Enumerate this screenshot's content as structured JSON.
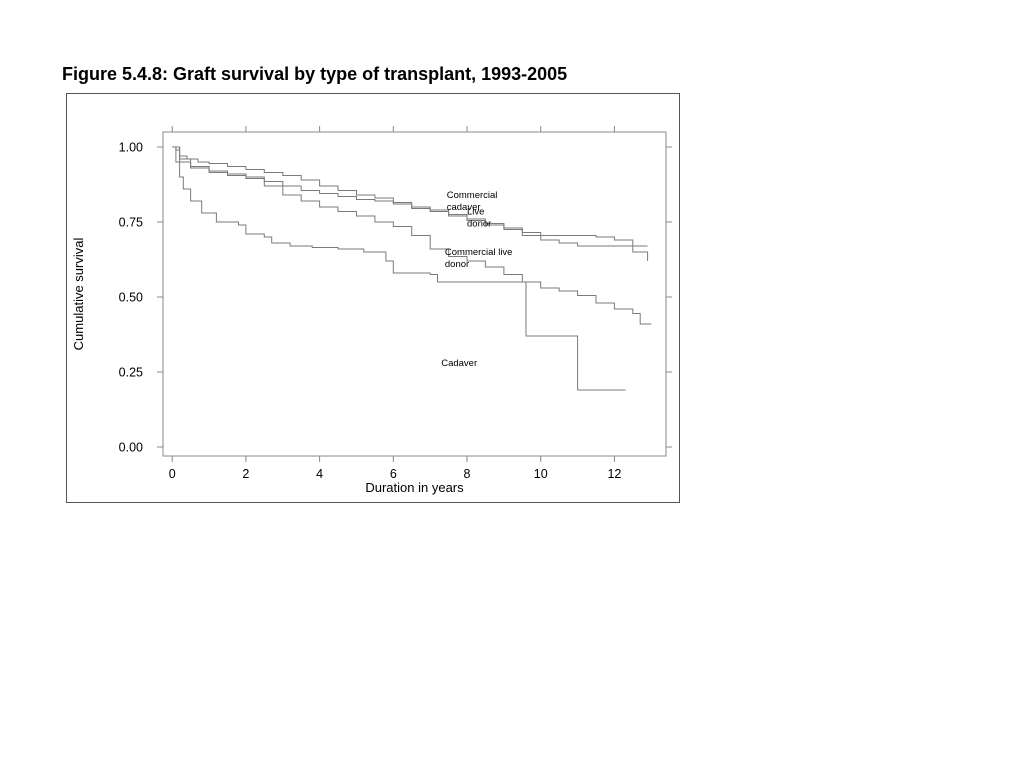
{
  "page": {
    "title": "Figure 5.4.8: Graft survival by type of transplant, 1993-2005"
  },
  "colors": {
    "curve": "#7a7a7a",
    "axis": "#888888",
    "text": "#000000"
  },
  "chart_data": {
    "type": "line",
    "step": true,
    "title": "",
    "xlabel": "Duration in years",
    "ylabel": "Cumulative survival",
    "xlim": [
      -0.25,
      13.4
    ],
    "ylim": [
      -0.03,
      1.05
    ],
    "x_ticks": [
      0,
      2,
      4,
      6,
      8,
      10,
      12
    ],
    "x_tick_labels": [
      "0",
      "2",
      "4",
      "6",
      "8",
      "10",
      "12"
    ],
    "y_ticks": [
      0,
      0.25,
      0.5,
      0.75,
      1.0
    ],
    "y_tick_labels": [
      "0.00",
      "0.25",
      "0.50",
      "0.75",
      "1.00"
    ],
    "grid": false,
    "series": [
      {
        "name": "Commercial cadaver",
        "label_lines": [
          "Commercial",
          "cadaver"
        ],
        "label_anchor": [
          7.45,
          0.83
        ],
        "points": [
          [
            0,
            1.0
          ],
          [
            0.1,
            0.99
          ],
          [
            0.2,
            0.97
          ],
          [
            0.4,
            0.96
          ],
          [
            0.7,
            0.95
          ],
          [
            1.0,
            0.945
          ],
          [
            1.5,
            0.935
          ],
          [
            2.0,
            0.925
          ],
          [
            2.5,
            0.915
          ],
          [
            3.0,
            0.905
          ],
          [
            3.5,
            0.89
          ],
          [
            4.0,
            0.87
          ],
          [
            4.5,
            0.855
          ],
          [
            5.0,
            0.84
          ],
          [
            5.5,
            0.83
          ],
          [
            6.0,
            0.815
          ],
          [
            6.5,
            0.8
          ],
          [
            7.0,
            0.79
          ],
          [
            7.5,
            0.775
          ],
          [
            8.0,
            0.76
          ],
          [
            8.5,
            0.745
          ],
          [
            9.0,
            0.73
          ],
          [
            9.5,
            0.715
          ],
          [
            10.0,
            0.705
          ],
          [
            11.5,
            0.7
          ],
          [
            12.0,
            0.69
          ],
          [
            12.5,
            0.65
          ],
          [
            12.9,
            0.62
          ]
        ]
      },
      {
        "name": "Live donor",
        "label_lines": [
          "Live",
          "donor"
        ],
        "label_anchor": [
          8.0,
          0.775
        ],
        "points": [
          [
            0,
            1.0
          ],
          [
            0.2,
            0.95
          ],
          [
            0.5,
            0.935
          ],
          [
            1.0,
            0.92
          ],
          [
            1.5,
            0.91
          ],
          [
            2.0,
            0.9
          ],
          [
            2.5,
            0.885
          ],
          [
            3.0,
            0.87
          ],
          [
            3.5,
            0.855
          ],
          [
            4.0,
            0.845
          ],
          [
            4.5,
            0.835
          ],
          [
            5.0,
            0.825
          ],
          [
            5.5,
            0.82
          ],
          [
            6.0,
            0.81
          ],
          [
            6.5,
            0.795
          ],
          [
            7.0,
            0.785
          ],
          [
            7.5,
            0.77
          ],
          [
            8.0,
            0.755
          ],
          [
            8.5,
            0.74
          ],
          [
            9.0,
            0.725
          ],
          [
            9.5,
            0.705
          ],
          [
            10.0,
            0.69
          ],
          [
            10.5,
            0.68
          ],
          [
            11.0,
            0.67
          ],
          [
            12.0,
            0.67
          ],
          [
            12.9,
            0.67
          ]
        ]
      },
      {
        "name": "Commercial live donor",
        "label_lines": [
          "Commercial live",
          "donor"
        ],
        "label_anchor": [
          7.4,
          0.64
        ],
        "points": [
          [
            0,
            1.0
          ],
          [
            0.2,
            0.96
          ],
          [
            0.5,
            0.93
          ],
          [
            1.0,
            0.915
          ],
          [
            1.5,
            0.905
          ],
          [
            2.0,
            0.895
          ],
          [
            2.5,
            0.87
          ],
          [
            3.0,
            0.84
          ],
          [
            3.5,
            0.82
          ],
          [
            4.0,
            0.8
          ],
          [
            4.5,
            0.785
          ],
          [
            5.0,
            0.77
          ],
          [
            5.5,
            0.75
          ],
          [
            6.0,
            0.735
          ],
          [
            6.5,
            0.705
          ],
          [
            7.0,
            0.66
          ],
          [
            7.5,
            0.635
          ],
          [
            8.0,
            0.62
          ],
          [
            8.5,
            0.6
          ],
          [
            9.0,
            0.575
          ],
          [
            9.5,
            0.55
          ],
          [
            10.0,
            0.53
          ],
          [
            10.5,
            0.52
          ],
          [
            11.0,
            0.505
          ],
          [
            11.5,
            0.48
          ],
          [
            12.0,
            0.46
          ],
          [
            12.5,
            0.445
          ],
          [
            12.7,
            0.41
          ],
          [
            13.0,
            0.41
          ]
        ]
      },
      {
        "name": "Cadaver",
        "label_lines": [
          "Cadaver"
        ],
        "label_anchor": [
          7.3,
          0.27
        ],
        "points": [
          [
            0,
            1.0
          ],
          [
            0.1,
            0.95
          ],
          [
            0.2,
            0.9
          ],
          [
            0.3,
            0.86
          ],
          [
            0.5,
            0.82
          ],
          [
            0.8,
            0.78
          ],
          [
            1.2,
            0.75
          ],
          [
            1.8,
            0.74
          ],
          [
            2.0,
            0.71
          ],
          [
            2.5,
            0.7
          ],
          [
            2.7,
            0.68
          ],
          [
            3.2,
            0.67
          ],
          [
            3.8,
            0.665
          ],
          [
            4.5,
            0.66
          ],
          [
            5.2,
            0.65
          ],
          [
            5.8,
            0.62
          ],
          [
            6.0,
            0.58
          ],
          [
            7.0,
            0.575
          ],
          [
            7.2,
            0.55
          ],
          [
            8.5,
            0.55
          ],
          [
            9.6,
            0.54
          ],
          [
            9.6,
            0.37
          ],
          [
            11.0,
            0.37
          ],
          [
            11.0,
            0.19
          ],
          [
            12.3,
            0.19
          ]
        ]
      }
    ]
  }
}
